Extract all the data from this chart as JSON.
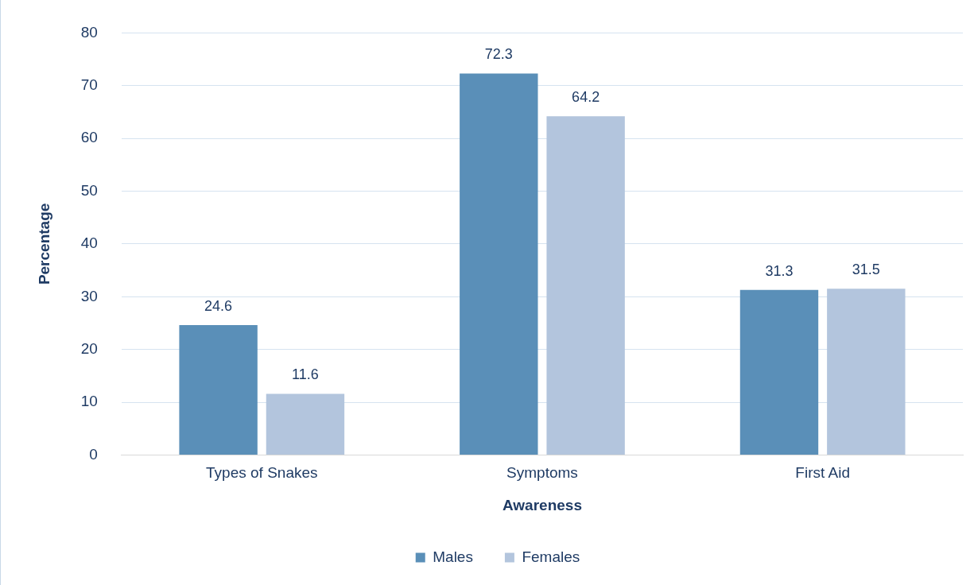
{
  "chart_data": {
    "type": "bar",
    "xlabel": "Awareness",
    "ylabel": "Percentage",
    "categories": [
      "Types of Snakes",
      "Symptoms",
      "First Aid"
    ],
    "series": [
      {
        "name": "Males",
        "color": "#5a8fb8",
        "values": [
          24.6,
          72.3,
          31.3
        ]
      },
      {
        "name": "Females",
        "color": "#b3c5dd",
        "values": [
          11.6,
          64.2,
          31.5
        ]
      }
    ],
    "ylim": [
      0,
      80
    ],
    "yticks": [
      0,
      10,
      20,
      30,
      40,
      50,
      60,
      70,
      80
    ],
    "grid": "y",
    "legend": "bottom",
    "data_labels": true
  }
}
